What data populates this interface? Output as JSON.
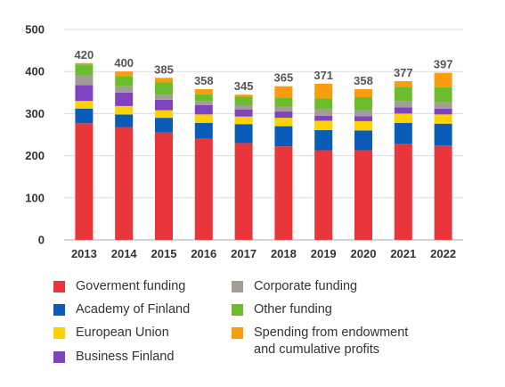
{
  "chart_data": {
    "type": "bar",
    "stacked": true,
    "categories": [
      "2013",
      "2014",
      "2015",
      "2016",
      "2017",
      "2018",
      "2019",
      "2020",
      "2021",
      "2022"
    ],
    "ylim": [
      0,
      500
    ],
    "yticks": [
      0,
      100,
      200,
      300,
      400,
      500
    ],
    "grid": "horizontal",
    "legend_position": "bottom",
    "totals": [
      420,
      400,
      385,
      358,
      345,
      365,
      371,
      358,
      377,
      397
    ],
    "series": [
      {
        "name": "Goverment funding",
        "color": "#e8363b",
        "values": [
          277,
          268,
          255,
          240,
          230,
          222,
          213,
          213,
          228,
          224
        ]
      },
      {
        "name": "Academy of Finland",
        "color": "#0a5cb8",
        "values": [
          35,
          30,
          35,
          38,
          45,
          48,
          48,
          47,
          50,
          52
        ]
      },
      {
        "name": "European Union",
        "color": "#fcd200",
        "values": [
          18,
          20,
          18,
          20,
          18,
          20,
          22,
          22,
          22,
          22
        ]
      },
      {
        "name": "Business Finland",
        "color": "#7e44c0",
        "values": [
          38,
          32,
          25,
          22,
          17,
          15,
          12,
          12,
          15,
          14
        ]
      },
      {
        "name": "Corporate funding",
        "color": "#a39c97",
        "values": [
          23,
          15,
          12,
          10,
          10,
          11,
          15,
          14,
          15,
          15
        ]
      },
      {
        "name": "Other funding",
        "color": "#6bbd2b",
        "values": [
          26,
          24,
          29,
          16,
          20,
          22,
          26,
          31,
          34,
          36
        ]
      },
      {
        "name": "Spending from endowment\nand cumulative profits",
        "color": "#f99c0e",
        "values": [
          3,
          11,
          11,
          12,
          5,
          27,
          35,
          19,
          13,
          34
        ]
      }
    ]
  }
}
